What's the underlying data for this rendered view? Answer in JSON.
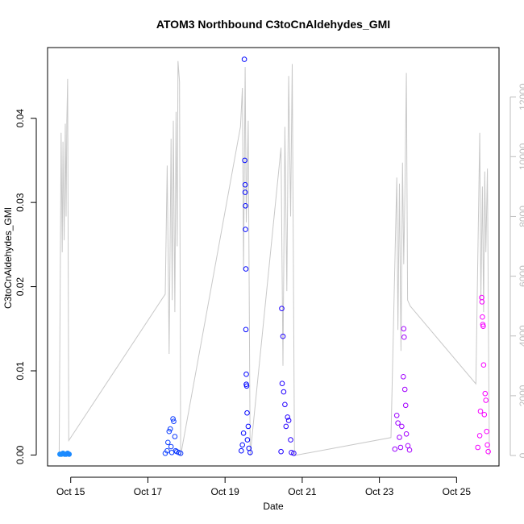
{
  "chart_data": {
    "type": "scatter",
    "title": "ATOM3 Northbound C3toCnAldehydes_GMI",
    "xlabel": "Date",
    "ylabel": "C3toCnAldehydes_GMI",
    "x_tick_labels": [
      "Oct 15",
      "Oct 17",
      "Oct 19",
      "Oct 21",
      "Oct 23",
      "Oct 25"
    ],
    "x_tick_days": [
      15,
      17,
      19,
      21,
      23,
      25
    ],
    "xlim": [
      14.4,
      26.1
    ],
    "ylim": [
      -0.0013,
      0.0484
    ],
    "y_ticks": [
      0.0,
      0.01,
      0.02,
      0.03,
      0.04
    ],
    "y_tick_labels": [
      "0.00",
      "0.01",
      "0.02",
      "0.03",
      "0.04"
    ],
    "y2lim": [
      -350,
      13650
    ],
    "y2_ticks": [
      0,
      2000,
      4000,
      6000,
      8000,
      10000,
      12000
    ],
    "y2_tick_labels": [
      "0",
      "2000",
      "4000",
      "6000",
      "8000",
      "10000",
      "12000"
    ],
    "colors": {
      "altitude_line": "#c8c8c8",
      "frame": "#000000",
      "right_axis": "#bdbdbd",
      "point_gradient": [
        "#1e90ff",
        "#0000ff",
        "#ff00ff"
      ]
    },
    "altitude_series": [
      [
        14.7,
        0
      ],
      [
        14.75,
        10800
      ],
      [
        14.78,
        6800
      ],
      [
        14.8,
        10500
      ],
      [
        14.83,
        7200
      ],
      [
        14.86,
        11100
      ],
      [
        14.88,
        8000
      ],
      [
        14.9,
        11200
      ],
      [
        14.92,
        12600
      ],
      [
        14.95,
        500
      ],
      [
        17.45,
        5400
      ],
      [
        17.5,
        9700
      ],
      [
        17.55,
        3400
      ],
      [
        17.6,
        10600
      ],
      [
        17.63,
        5200
      ],
      [
        17.66,
        11200
      ],
      [
        17.7,
        4800
      ],
      [
        17.73,
        11500
      ],
      [
        17.76,
        7000
      ],
      [
        17.78,
        13200
      ],
      [
        17.82,
        12500
      ],
      [
        17.85,
        0
      ],
      [
        19.4,
        11000
      ],
      [
        19.45,
        12300
      ],
      [
        19.48,
        6200
      ],
      [
        19.52,
        13000
      ],
      [
        19.55,
        7800
      ],
      [
        19.6,
        11200
      ],
      [
        19.65,
        0
      ],
      [
        20.45,
        10300
      ],
      [
        20.5,
        3000
      ],
      [
        20.55,
        11000
      ],
      [
        20.6,
        5500
      ],
      [
        20.65,
        12700
      ],
      [
        20.7,
        8000
      ],
      [
        20.74,
        13100
      ],
      [
        20.8,
        0
      ],
      [
        23.3,
        600
      ],
      [
        23.45,
        9300
      ],
      [
        23.48,
        4200
      ],
      [
        23.52,
        9100
      ],
      [
        23.56,
        3500
      ],
      [
        23.6,
        9800
      ],
      [
        23.63,
        6400
      ],
      [
        23.66,
        8600
      ],
      [
        23.7,
        12800
      ],
      [
        23.73,
        5200
      ],
      [
        23.8,
        5000
      ],
      [
        25.5,
        2400
      ],
      [
        25.6,
        10800
      ],
      [
        25.63,
        5200
      ],
      [
        25.67,
        9000
      ],
      [
        25.7,
        4800
      ],
      [
        25.73,
        9500
      ],
      [
        25.76,
        6800
      ],
      [
        25.8,
        9600
      ],
      [
        25.85,
        0
      ]
    ],
    "series": [
      {
        "values": [
          [
            14.72,
            0.0001
          ],
          [
            14.76,
            0.0001
          ],
          [
            14.8,
            0.0002
          ],
          [
            14.84,
            0.0001
          ],
          [
            14.88,
            0.0001
          ],
          [
            14.92,
            0.0002
          ],
          [
            14.96,
            0.0001
          ]
        ]
      },
      {
        "values": [
          [
            17.45,
            0.0002
          ],
          [
            17.5,
            0.0005
          ],
          [
            17.52,
            0.0015
          ],
          [
            17.55,
            0.0028
          ],
          [
            17.58,
            0.0031
          ],
          [
            17.6,
            0.001
          ],
          [
            17.62,
            0.0003
          ],
          [
            17.65,
            0.0043
          ],
          [
            17.67,
            0.004
          ],
          [
            17.7,
            0.0022
          ],
          [
            17.72,
            0.0005
          ],
          [
            17.75,
            0.0004
          ],
          [
            17.8,
            0.0003
          ],
          [
            17.85,
            0.0002
          ]
        ]
      },
      {
        "values": [
          [
            19.42,
            0.0005
          ],
          [
            19.45,
            0.0012
          ],
          [
            19.48,
            0.0026
          ],
          [
            19.5,
            0.047
          ],
          [
            19.51,
            0.035
          ],
          [
            19.52,
            0.0321
          ],
          [
            19.52,
            0.0312
          ],
          [
            19.53,
            0.0296
          ],
          [
            19.53,
            0.0268
          ],
          [
            19.54,
            0.0221
          ],
          [
            19.54,
            0.0149
          ],
          [
            19.55,
            0.0096
          ],
          [
            19.55,
            0.0084
          ],
          [
            19.56,
            0.0082
          ],
          [
            19.57,
            0.005
          ],
          [
            19.58,
            0.0018
          ],
          [
            19.6,
            0.0034
          ],
          [
            19.62,
            0.0008
          ],
          [
            19.65,
            0.0003
          ]
        ]
      },
      {
        "values": [
          [
            20.45,
            0.0004
          ],
          [
            20.47,
            0.0174
          ],
          [
            20.48,
            0.0085
          ],
          [
            20.5,
            0.0141
          ],
          [
            20.52,
            0.0075
          ],
          [
            20.55,
            0.006
          ],
          [
            20.58,
            0.0034
          ],
          [
            20.62,
            0.0045
          ],
          [
            20.65,
            0.0041
          ],
          [
            20.7,
            0.0018
          ],
          [
            20.72,
            0.0003
          ],
          [
            20.78,
            0.0002
          ]
        ]
      },
      {
        "values": [
          [
            23.4,
            0.0007
          ],
          [
            23.45,
            0.0047
          ],
          [
            23.48,
            0.0038
          ],
          [
            23.52,
            0.0021
          ],
          [
            23.55,
            0.0009
          ],
          [
            23.58,
            0.0034
          ],
          [
            23.62,
            0.0093
          ],
          [
            23.63,
            0.015
          ],
          [
            23.64,
            0.014
          ],
          [
            23.66,
            0.0078
          ],
          [
            23.68,
            0.0059
          ],
          [
            23.7,
            0.0025
          ],
          [
            23.74,
            0.0011
          ],
          [
            23.78,
            0.0006
          ]
        ]
      },
      {
        "values": [
          [
            25.55,
            0.0009
          ],
          [
            25.6,
            0.0023
          ],
          [
            25.62,
            0.0052
          ],
          [
            25.65,
            0.0187
          ],
          [
            25.66,
            0.0182
          ],
          [
            25.67,
            0.0164
          ],
          [
            25.68,
            0.0155
          ],
          [
            25.69,
            0.0153
          ],
          [
            25.7,
            0.0107
          ],
          [
            25.72,
            0.0048
          ],
          [
            25.74,
            0.0073
          ],
          [
            25.76,
            0.0065
          ],
          [
            25.78,
            0.0028
          ],
          [
            25.8,
            0.0012
          ],
          [
            25.82,
            0.0004
          ]
        ]
      }
    ]
  }
}
